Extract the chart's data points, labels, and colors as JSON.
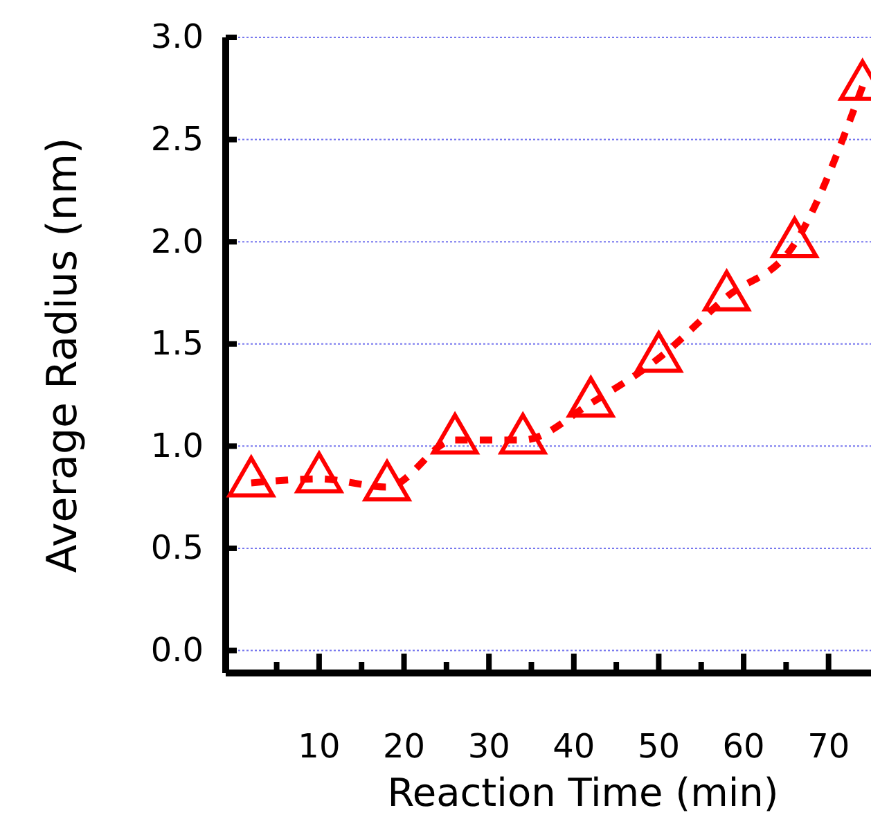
{
  "chart_data": {
    "type": "line",
    "xlabel": "Reaction Time (min)",
    "ylabel": "Average Radius (nm)",
    "x": [
      2,
      10,
      18,
      26,
      34,
      42,
      50,
      58,
      66,
      74
    ],
    "series": [
      {
        "color": "#ff0000",
        "values": [
          0.82,
          0.84,
          0.8,
          1.03,
          1.03,
          1.21,
          1.43,
          1.73,
          1.99,
          2.76
        ]
      }
    ],
    "xlim": [
      -1,
      75
    ],
    "xticks": [
      {
        "value": 5,
        "label": null
      },
      10,
      {
        "value": 15,
        "label": null
      },
      20,
      {
        "value": 25,
        "label": null
      },
      30,
      {
        "value": 35,
        "label": null
      },
      40,
      {
        "value": 45,
        "label": null
      },
      50,
      {
        "value": 55,
        "label": null
      },
      60,
      {
        "value": 65,
        "label": null
      },
      70
    ],
    "ylim": [
      -0.11,
      3.0
    ],
    "yticks": [
      {
        "value": 0,
        "label": "0.0"
      },
      0.5,
      {
        "value": 1,
        "label": "1.0"
      },
      1.5,
      {
        "value": 2,
        "label": "2.0"
      },
      2.5,
      {
        "value": 3,
        "label": "3.0"
      }
    ],
    "grid": "y",
    "marker": "triangle",
    "line_style": "dashed"
  }
}
